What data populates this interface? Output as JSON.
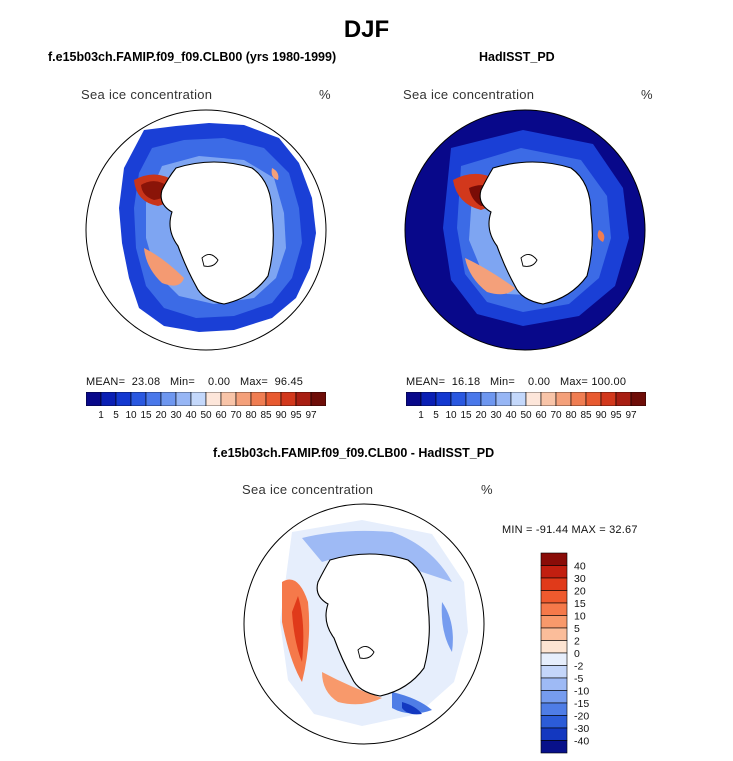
{
  "title": "DJF",
  "panels": [
    {
      "name": "model",
      "header": "f.e15b03ch.FAMIP.f09_f09.CLB00 (yrs 1980-1999)",
      "plot_label": "Sea ice concentration",
      "units": "%",
      "stats": {
        "mean_label": "MEAN=",
        "mean": "23.08",
        "min_label": "Min=",
        "min": "0.00",
        "max_label": "Max=",
        "max": "96.45"
      }
    },
    {
      "name": "obs",
      "header": "HadISST_PD",
      "plot_label": "Sea ice concentration",
      "units": "%",
      "stats": {
        "mean_label": "MEAN=",
        "mean": "16.18",
        "min_label": "Min=",
        "min": "0.00",
        "max_label": "Max=",
        "max": "100.00"
      }
    },
    {
      "name": "diff",
      "header": "f.e15b03ch.FAMIP.f09_f09.CLB00 - HadISST_PD",
      "plot_label": "Sea ice concentration",
      "units": "%",
      "minmax": "MIN = -91.44  MAX =  32.67"
    }
  ],
  "colorbar_abs": {
    "labels": [
      "1",
      "5",
      "10",
      "15",
      "20",
      "30",
      "40",
      "50",
      "60",
      "70",
      "80",
      "85",
      "90",
      "95",
      "97"
    ],
    "colors": [
      "#08088a",
      "#0a1fb4",
      "#1338d0",
      "#2a58e0",
      "#4a78ea",
      "#6e97f0",
      "#97b6f5",
      "#c4d8fb",
      "#fde6da",
      "#f8c4a8",
      "#f4a07a",
      "#ef7d52",
      "#e85a30",
      "#d2381c",
      "#a81e12",
      "#6e0d08"
    ]
  },
  "colorbar_diff": {
    "labels": [
      "40",
      "30",
      "20",
      "15",
      "10",
      "5",
      "2",
      "0",
      "-2",
      "-5",
      "-10",
      "-15",
      "-20",
      "-30",
      "-40"
    ],
    "colors": [
      "#8a0c08",
      "#c21f10",
      "#e03a1a",
      "#ef5a2e",
      "#f5794a",
      "#f8996b",
      "#fbbd9a",
      "#fde4d2",
      "#e6eefc",
      "#c4d6fa",
      "#9ebaf5",
      "#769cef",
      "#4f7de6",
      "#2c5cd8",
      "#1338c0",
      "#08118a"
    ]
  }
}
